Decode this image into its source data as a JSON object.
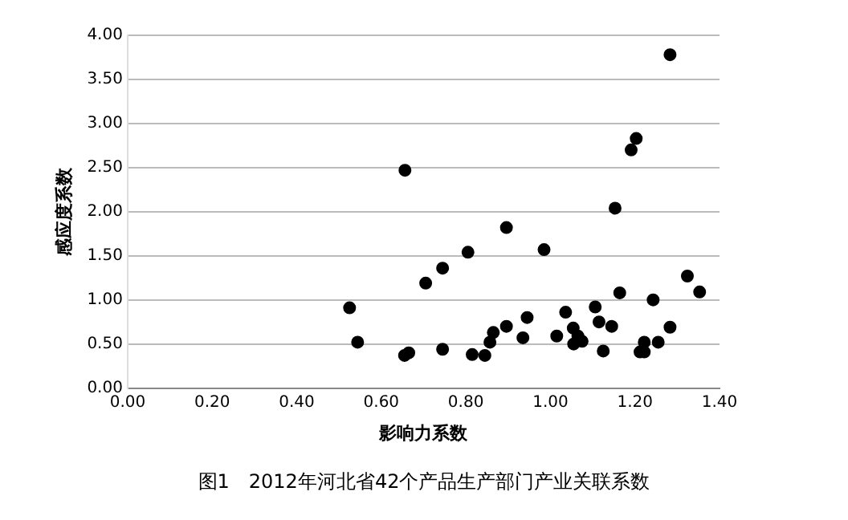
{
  "chart_data": {
    "type": "scatter",
    "xlabel": "影响力系数",
    "ylabel": "感应度系数",
    "annotations": [
      "图1　2012年河北省42个产品生产部门产业关联系数"
    ],
    "x": [
      0.525,
      0.544,
      0.655,
      0.665,
      0.656,
      0.705,
      0.745,
      0.745,
      0.805,
      0.815,
      0.845,
      0.857,
      0.865,
      0.896,
      0.896,
      0.935,
      0.945,
      0.985,
      1.015,
      1.036,
      1.054,
      1.055,
      1.065,
      1.075,
      1.106,
      1.115,
      1.125,
      1.145,
      1.153,
      1.164,
      1.191,
      1.203,
      1.212,
      1.222,
      1.222,
      1.243,
      1.255,
      1.283,
      1.283,
      1.324,
      1.353
    ],
    "series": [
      {
        "color": "#000000",
        "values": [
          0.91,
          0.52,
          0.37,
          0.4,
          2.47,
          1.19,
          1.36,
          0.44,
          1.54,
          0.38,
          0.37,
          0.52,
          0.63,
          1.82,
          0.7,
          0.57,
          0.8,
          1.57,
          0.59,
          0.86,
          0.68,
          0.5,
          0.59,
          0.53,
          0.92,
          0.75,
          0.42,
          0.7,
          2.04,
          1.08,
          2.7,
          2.83,
          0.41,
          0.52,
          0.41,
          1.0,
          0.52,
          0.69,
          3.78,
          1.27,
          1.09
        ]
      }
    ],
    "xlim": [
      0,
      1.4
    ],
    "xticks": [
      {
        "value": 0,
        "label": "0.00"
      },
      {
        "value": 0.2,
        "label": "0.20"
      },
      {
        "value": 0.4,
        "label": "0.40"
      },
      {
        "value": 0.6,
        "label": "0.60"
      },
      {
        "value": 0.8,
        "label": "0.80"
      },
      {
        "value": 1,
        "label": "1.00"
      },
      {
        "value": 1.2,
        "label": "1.20"
      },
      {
        "value": 1.4,
        "label": "1.40"
      }
    ],
    "ylim": [
      0,
      4
    ],
    "yticks": [
      {
        "value": 0,
        "label": "0.00"
      },
      {
        "value": 0.5,
        "label": "0.50"
      },
      {
        "value": 1,
        "label": "1.00"
      },
      {
        "value": 1.5,
        "label": "1.50"
      },
      {
        "value": 2,
        "label": "2.00"
      },
      {
        "value": 2.5,
        "label": "2.50"
      },
      {
        "value": 3,
        "label": "3.00"
      },
      {
        "value": 3.5,
        "label": "3.50"
      },
      {
        "value": 4,
        "label": "4.00"
      }
    ],
    "grid": "y",
    "legend": false,
    "marker": "circle"
  }
}
